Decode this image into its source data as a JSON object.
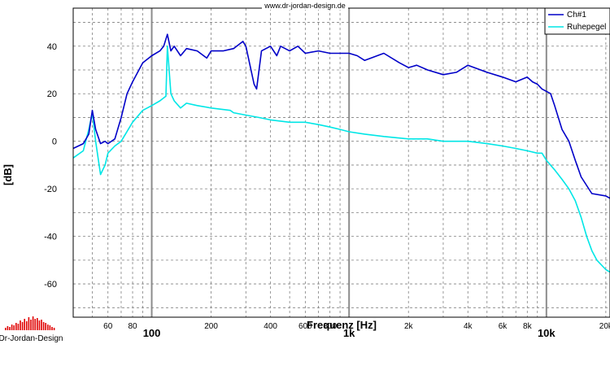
{
  "watermark": "www.dr-jordan-design.de",
  "brand": "Dr-Jordan-Design",
  "colors": {
    "ch1": "#0000c8",
    "ruhepegel": "#00e6e6",
    "grid": "#808080",
    "brand": "#e00000"
  },
  "chart_data": {
    "type": "line",
    "xscale": "log",
    "xlabel": "Frequenz [Hz]",
    "ylabel": "[dB]",
    "xlim": [
      40,
      21000
    ],
    "ylim": [
      -74,
      56
    ],
    "x_ticks": [
      {
        "value": 60,
        "label": "60",
        "major": false
      },
      {
        "value": 80,
        "label": "80",
        "major": false
      },
      {
        "value": 100,
        "label": "100",
        "major": true
      },
      {
        "value": 200,
        "label": "200",
        "major": false
      },
      {
        "value": 400,
        "label": "400",
        "major": false
      },
      {
        "value": 600,
        "label": "600",
        "major": false
      },
      {
        "value": 800,
        "label": "800",
        "major": false
      },
      {
        "value": 1000,
        "label": "1k",
        "major": true
      },
      {
        "value": 2000,
        "label": "2k",
        "major": false
      },
      {
        "value": 4000,
        "label": "4k",
        "major": false
      },
      {
        "value": 6000,
        "label": "6k",
        "major": false
      },
      {
        "value": 8000,
        "label": "8k",
        "major": false
      },
      {
        "value": 10000,
        "label": "10k",
        "major": true
      },
      {
        "value": 20000,
        "label": "20k",
        "major": false
      }
    ],
    "y_ticks": [
      40,
      20,
      0,
      -20,
      -40,
      -60
    ],
    "legend_position": "top-right",
    "series": [
      {
        "name": "Ch#1",
        "x": [
          40,
          45,
          48,
          50,
          52,
          55,
          58,
          60,
          65,
          70,
          75,
          80,
          90,
          100,
          110,
          115,
          120,
          125,
          130,
          140,
          150,
          170,
          190,
          200,
          230,
          260,
          290,
          300,
          330,
          340,
          360,
          400,
          430,
          450,
          500,
          550,
          600,
          700,
          800,
          900,
          1000,
          1100,
          1200,
          1500,
          1800,
          2000,
          2200,
          2500,
          3000,
          3500,
          4000,
          5000,
          6000,
          7000,
          8000,
          8500,
          9000,
          9500,
          10000,
          10500,
          11000,
          12000,
          13000,
          14000,
          15000,
          17000,
          20000,
          21000
        ],
        "y": [
          -3,
          -1,
          3,
          13,
          5,
          -1,
          0,
          -1,
          1,
          10,
          20,
          25,
          33,
          36,
          38,
          40,
          45,
          38,
          40,
          36,
          39,
          38,
          35,
          38,
          38,
          39,
          42,
          40,
          24,
          22,
          38,
          40,
          36,
          40,
          38,
          40,
          37,
          38,
          37,
          37,
          37,
          36,
          34,
          37,
          33,
          31,
          32,
          30,
          28,
          29,
          32,
          29,
          27,
          25,
          27,
          25,
          24,
          22,
          21,
          20,
          15,
          5,
          0,
          -8,
          -15,
          -22,
          -23,
          -24
        ]
      },
      {
        "name": "Ruhepegel",
        "x": [
          40,
          45,
          48,
          50,
          52,
          55,
          58,
          60,
          65,
          70,
          80,
          90,
          100,
          110,
          118,
          120,
          125,
          130,
          140,
          150,
          170,
          200,
          250,
          260,
          300,
          350,
          400,
          500,
          600,
          700,
          800,
          900,
          1000,
          1200,
          1500,
          2000,
          2500,
          3000,
          4000,
          5000,
          6000,
          7000,
          8000,
          9000,
          9500,
          10000,
          11000,
          12000,
          13000,
          14000,
          15000,
          16000,
          17000,
          18000,
          20000,
          21000
        ],
        "y": [
          -7,
          -4,
          5,
          12,
          0,
          -14,
          -10,
          -5,
          -2,
          0,
          8,
          13,
          15,
          17,
          19,
          40,
          20,
          17,
          14,
          16,
          15,
          14,
          13,
          12,
          11,
          10,
          9,
          8,
          8,
          7,
          6,
          5,
          4,
          3,
          2,
          1,
          1,
          0,
          0,
          -1,
          -2,
          -3,
          -4,
          -5,
          -5,
          -8,
          -12,
          -16,
          -20,
          -25,
          -32,
          -40,
          -46,
          -50,
          -54,
          -55
        ]
      }
    ]
  }
}
